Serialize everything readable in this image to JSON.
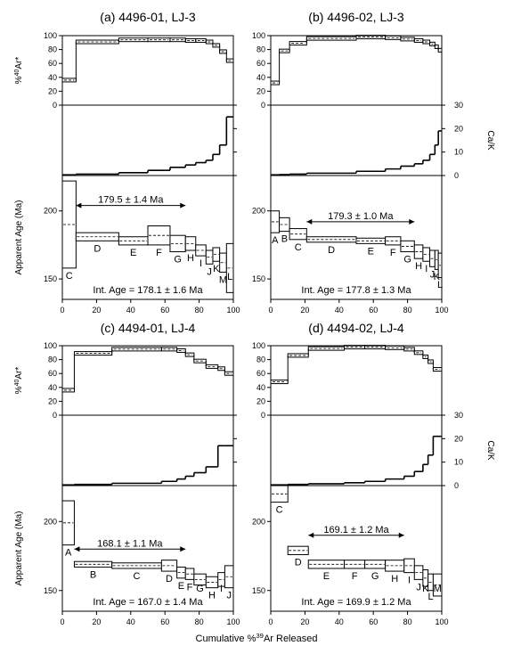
{
  "figure": {
    "x_label": "Cumulative %39Ar Released",
    "y_label_ar40": "%40Ar*",
    "y_label_cak": "Ca/K",
    "y_label_age": "Apparent Age (Ma)"
  },
  "chart_data": [
    {
      "type": "line",
      "title": "(a) 4496-01, LJ-3",
      "xlabel": "Cumulative %39Ar Released",
      "xlim": [
        0,
        100
      ],
      "x_ticks": [
        "0",
        "20",
        "40",
        "60",
        "80",
        "100"
      ],
      "panels": {
        "ar40": {
          "ylabel": "%40Ar*",
          "ylim": [
            0,
            100
          ],
          "y_ticks": [
            "0",
            "20",
            "40",
            "60",
            "80",
            "100"
          ]
        },
        "cak": {
          "ylabel": "Ca/K",
          "ylim": [
            0,
            30
          ],
          "y_ticks": [
            "0",
            "10",
            "20",
            "30"
          ]
        },
        "age": {
          "ylabel": "Apparent Age (Ma)",
          "ylim": [
            135,
            226
          ],
          "y_ticks": [
            "150",
            "200"
          ]
        }
      },
      "steps": [
        {
          "label": "C",
          "x0": 0,
          "x1": 8,
          "ar40": 36,
          "cak": 0.3,
          "age": 190,
          "err": 32
        },
        {
          "label": "D",
          "x0": 8,
          "x1": 33,
          "ar40": 91,
          "cak": 0.6,
          "age": 181,
          "err": 3
        },
        {
          "label": "E",
          "x0": 33,
          "x1": 50,
          "ar40": 94,
          "cak": 1.2,
          "age": 178,
          "err": 3
        },
        {
          "label": "F",
          "x0": 50,
          "x1": 63,
          "ar40": 94,
          "cak": 2.2,
          "age": 182,
          "err": 7
        },
        {
          "label": "G",
          "x0": 63,
          "x1": 72,
          "ar40": 94,
          "cak": 3.5,
          "age": 176,
          "err": 6
        },
        {
          "label": "H",
          "x0": 72,
          "x1": 78,
          "ar40": 93,
          "cak": 4.5,
          "age": 176,
          "err": 5
        },
        {
          "label": "I",
          "x0": 78,
          "x1": 84,
          "ar40": 93,
          "cak": 5.5,
          "age": 171,
          "err": 4
        },
        {
          "label": "J",
          "x0": 84,
          "x1": 88,
          "ar40": 91,
          "cak": 6.5,
          "age": 166,
          "err": 5
        },
        {
          "label": "K",
          "x0": 88,
          "x1": 92,
          "ar40": 86,
          "cak": 9,
          "age": 168,
          "err": 5
        },
        {
          "label": "M",
          "x0": 92,
          "x1": 96,
          "ar40": 77,
          "cak": 13,
          "age": 162,
          "err": 7
        },
        {
          "label": "L",
          "x0": 96,
          "x1": 100,
          "ar40": 64,
          "cak": 25,
          "age": 158,
          "err": 18
        }
      ],
      "plateau": {
        "label": "179.5 ± 1.4 Ma",
        "x0": 8,
        "x1": 72,
        "age": 204
      },
      "integrated_age": "Int. Age = 178.1 ± 1.6 Ma"
    },
    {
      "type": "line",
      "title": "(b) 4496-02, LJ-3",
      "xlabel": "Cumulative %39Ar Released",
      "xlim": [
        0,
        100
      ],
      "x_ticks": [
        "0",
        "20",
        "40",
        "60",
        "80",
        "100"
      ],
      "panels": {
        "ar40": {
          "ylabel": "%40Ar*",
          "ylim": [
            0,
            100
          ],
          "y_ticks": [
            "0",
            "20",
            "40",
            "60",
            "80",
            "100"
          ]
        },
        "cak": {
          "ylabel": "Ca/K",
          "ylim": [
            0,
            30
          ],
          "y_ticks": [
            "0",
            "10",
            "20",
            "30"
          ]
        },
        "age": {
          "ylabel": "Apparent Age (Ma)",
          "ylim": [
            135,
            226
          ],
          "y_ticks": [
            "150",
            "200"
          ]
        }
      },
      "steps": [
        {
          "label": "A",
          "x0": 0,
          "x1": 5,
          "ar40": 32,
          "cak": 0.3,
          "age": 192,
          "err": 8
        },
        {
          "label": "B",
          "x0": 5,
          "x1": 11,
          "ar40": 78,
          "cak": 0.4,
          "age": 190,
          "err": 5
        },
        {
          "label": "C",
          "x0": 11,
          "x1": 21,
          "ar40": 89,
          "cak": 0.6,
          "age": 183,
          "err": 4
        },
        {
          "label": "D",
          "x0": 21,
          "x1": 50,
          "ar40": 96,
          "cak": 1.0,
          "age": 179,
          "err": 2
        },
        {
          "label": "E",
          "x0": 50,
          "x1": 67,
          "ar40": 98,
          "cak": 1.8,
          "age": 178,
          "err": 2
        },
        {
          "label": "F",
          "x0": 67,
          "x1": 76,
          "ar40": 97,
          "cak": 2.8,
          "age": 178,
          "err": 3
        },
        {
          "label": "G",
          "x0": 76,
          "x1": 84,
          "ar40": 95,
          "cak": 4,
          "age": 174,
          "err": 4
        },
        {
          "label": "H",
          "x0": 84,
          "x1": 89,
          "ar40": 93,
          "cak": 5,
          "age": 170,
          "err": 5
        },
        {
          "label": "I",
          "x0": 89,
          "x1": 93,
          "ar40": 91,
          "cak": 6.5,
          "age": 168,
          "err": 5
        },
        {
          "label": "J",
          "x0": 93,
          "x1": 96,
          "ar40": 88,
          "cak": 9,
          "age": 165,
          "err": 6
        },
        {
          "label": "K",
          "x0": 96,
          "x1": 98,
          "ar40": 84,
          "cak": 13,
          "age": 164,
          "err": 7
        },
        {
          "label": "L",
          "x0": 98,
          "x1": 100,
          "ar40": 79,
          "cak": 19,
          "age": 160,
          "err": 9
        }
      ],
      "plateau": {
        "label": "179.3 ± 1.0 Ma",
        "x0": 21,
        "x1": 84,
        "age": 192
      },
      "integrated_age": "Int. Age = 177.8 ± 1.3 Ma"
    },
    {
      "type": "line",
      "title": "(c) 4494-01, LJ-4",
      "xlabel": "Cumulative %39Ar Released",
      "xlim": [
        0,
        100
      ],
      "x_ticks": [
        "0",
        "20",
        "40",
        "60",
        "80",
        "100"
      ],
      "panels": {
        "ar40": {
          "ylabel": "%40Ar*",
          "ylim": [
            0,
            100
          ],
          "y_ticks": [
            "0",
            "20",
            "40",
            "60",
            "80",
            "100"
          ]
        },
        "cak": {
          "ylabel": "Ca/K",
          "ylim": [
            0,
            30
          ],
          "y_ticks": [
            "0",
            "10",
            "20",
            "30"
          ]
        },
        "age": {
          "ylabel": "Apparent Age (Ma)",
          "ylim": [
            135,
            226
          ],
          "y_ticks": [
            "150",
            "200"
          ]
        }
      },
      "steps": [
        {
          "label": "A",
          "x0": 0,
          "x1": 7,
          "ar40": 36,
          "cak": 0.3,
          "age": 199,
          "err": 16
        },
        {
          "label": "B",
          "x0": 7,
          "x1": 29,
          "ar40": 89,
          "cak": 0.5,
          "age": 169,
          "err": 2
        },
        {
          "label": "C",
          "x0": 29,
          "x1": 58,
          "ar40": 95,
          "cak": 1.0,
          "age": 168,
          "err": 2
        },
        {
          "label": "D",
          "x0": 58,
          "x1": 67,
          "ar40": 95,
          "cak": 1.8,
          "age": 168,
          "err": 4
        },
        {
          "label": "E",
          "x0": 67,
          "x1": 72,
          "ar40": 93,
          "cak": 2.8,
          "age": 163,
          "err": 4
        },
        {
          "label": "F",
          "x0": 72,
          "x1": 77,
          "ar40": 87,
          "cak": 4,
          "age": 162,
          "err": 4
        },
        {
          "label": "G",
          "x0": 77,
          "x1": 84,
          "ar40": 78,
          "cak": 5.5,
          "age": 158,
          "err": 4
        },
        {
          "label": "H",
          "x0": 84,
          "x1": 91,
          "ar40": 70,
          "cak": 8,
          "age": 156,
          "err": 4
        },
        {
          "label": "I",
          "x0": 91,
          "x1": 95,
          "ar40": 67,
          "cak": 17,
          "age": 158,
          "err": 5
        },
        {
          "label": "J",
          "x0": 95,
          "x1": 100,
          "ar40": 60,
          "cak": 17,
          "age": 160,
          "err": 8
        }
      ],
      "plateau": {
        "label": "168.1 ± 1.1 Ma",
        "x0": 7,
        "x1": 72,
        "age": 180
      },
      "integrated_age": "Int. Age = 167.0 ± 1.4 Ma"
    },
    {
      "type": "line",
      "title": "(d) 4494-02, LJ-4",
      "xlabel": "Cumulative %39Ar Released",
      "xlim": [
        0,
        100
      ],
      "x_ticks": [
        "0",
        "20",
        "40",
        "60",
        "80",
        "100"
      ],
      "panels": {
        "ar40": {
          "ylabel": "%40Ar*",
          "ylim": [
            0,
            100
          ],
          "y_ticks": [
            "0",
            "20",
            "40",
            "60",
            "80",
            "100"
          ]
        },
        "cak": {
          "ylabel": "Ca/K",
          "ylim": [
            0,
            30
          ],
          "y_ticks": [
            "0",
            "10",
            "20",
            "30"
          ]
        },
        "age": {
          "ylabel": "Apparent Age (Ma)",
          "ylim": [
            135,
            226
          ],
          "y_ticks": [
            "150",
            "200"
          ]
        }
      },
      "steps": [
        {
          "label": "C",
          "x0": 0,
          "x1": 10,
          "ar40": 48,
          "cak": 0.3,
          "age": 220,
          "err": 6
        },
        {
          "label": "D",
          "x0": 10,
          "x1": 22,
          "ar40": 86,
          "cak": 0.5,
          "age": 179,
          "err": 3
        },
        {
          "label": "E",
          "x0": 22,
          "x1": 43,
          "ar40": 96,
          "cak": 0.8,
          "age": 169,
          "err": 3
        },
        {
          "label": "F",
          "x0": 43,
          "x1": 55,
          "ar40": 98,
          "cak": 1.2,
          "age": 169,
          "err": 3
        },
        {
          "label": "G",
          "x0": 55,
          "x1": 67,
          "ar40": 98,
          "cak": 1.8,
          "age": 169,
          "err": 3
        },
        {
          "label": "H",
          "x0": 67,
          "x1": 78,
          "ar40": 97,
          "cak": 2.8,
          "age": 168,
          "err": 4
        },
        {
          "label": "I",
          "x0": 78,
          "x1": 84,
          "ar40": 95,
          "cak": 4,
          "age": 168,
          "err": 5
        },
        {
          "label": "J",
          "x0": 84,
          "x1": 89,
          "ar40": 90,
          "cak": 6,
          "age": 163,
          "err": 5
        },
        {
          "label": "K",
          "x0": 89,
          "x1": 92,
          "ar40": 84,
          "cak": 9,
          "age": 159,
          "err": 6
        },
        {
          "label": "L",
          "x0": 92,
          "x1": 95,
          "ar40": 77,
          "cak": 13,
          "age": 156,
          "err": 6
        },
        {
          "label": "M",
          "x0": 95,
          "x1": 100,
          "ar40": 66,
          "cak": 21,
          "age": 154,
          "err": 8
        }
      ],
      "plateau": {
        "label": "169.1 ± 1.2 Ma",
        "x0": 22,
        "x1": 78,
        "age": 190
      },
      "integrated_age": "Int. Age = 169.9 ± 1.2 Ma"
    }
  ]
}
